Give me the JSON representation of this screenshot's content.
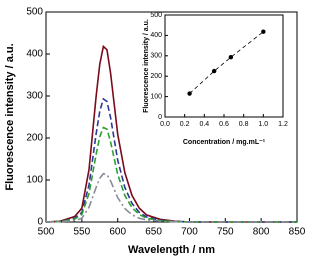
{
  "chart_data": [
    {
      "type": "line",
      "xlabel": "Wavelength / nm",
      "ylabel": "Fluorescence intensity / a.u.",
      "x": [
        500,
        520,
        540,
        550,
        560,
        570,
        575,
        580,
        585,
        590,
        600,
        610,
        620,
        630,
        640,
        660,
        680,
        700,
        750,
        800,
        850
      ],
      "series": [
        {
          "color": "#7a0a1a",
          "dash": "none",
          "values": [
            0,
            2,
            13,
            33,
            125,
            301,
            376,
            418,
            410,
            355,
            209,
            117,
            63,
            33,
            17,
            6,
            2,
            0,
            0,
            0,
            0
          ]
        },
        {
          "color": "#2b3a9a",
          "dash": "6,3",
          "values": [
            0,
            1,
            9,
            23,
            88,
            211,
            264,
            293,
            287,
            249,
            147,
            82,
            44,
            23,
            12,
            4,
            1,
            0,
            0,
            0,
            0
          ]
        },
        {
          "color": "#2ca02c",
          "dash": "6,3",
          "values": [
            0,
            1,
            7,
            18,
            68,
            162,
            203,
            225,
            221,
            191,
            113,
            63,
            34,
            18,
            9,
            3,
            1,
            0,
            0,
            0,
            0
          ]
        },
        {
          "color": "#8a8a9a",
          "dash": "8,3,2,3",
          "values": [
            0,
            1,
            3,
            9,
            35,
            83,
            104,
            115,
            113,
            98,
            58,
            32,
            17,
            9,
            5,
            2,
            1,
            0,
            0,
            0,
            0
          ]
        }
      ],
      "xlim": [
        500,
        850
      ],
      "xticks": [
        500,
        550,
        600,
        650,
        700,
        750,
        800,
        850
      ],
      "ylim": [
        0,
        500
      ],
      "yticks": [
        0,
        100,
        200,
        300,
        400,
        500
      ]
    },
    {
      "type": "scatter",
      "xlabel": "Concentration / mg.mL⁻¹",
      "ylabel": "Fluorescence intensity / a.u.",
      "x": [
        0.25,
        0.5,
        0.67,
        1.0
      ],
      "series": [
        {
          "color": "#000000",
          "line": true,
          "dash": "4,3",
          "values": [
            115,
            225,
            293,
            418
          ]
        }
      ],
      "xlim": [
        0,
        1.2
      ],
      "xticks": [
        {
          "value": 0,
          "label": "0.0"
        },
        0.2,
        0.4,
        0.6,
        0.8,
        {
          "value": 1,
          "label": "1.0"
        },
        1.2
      ],
      "ylim": [
        0,
        500
      ],
      "yticks": [
        0,
        100,
        200,
        300,
        400,
        500
      ]
    }
  ]
}
